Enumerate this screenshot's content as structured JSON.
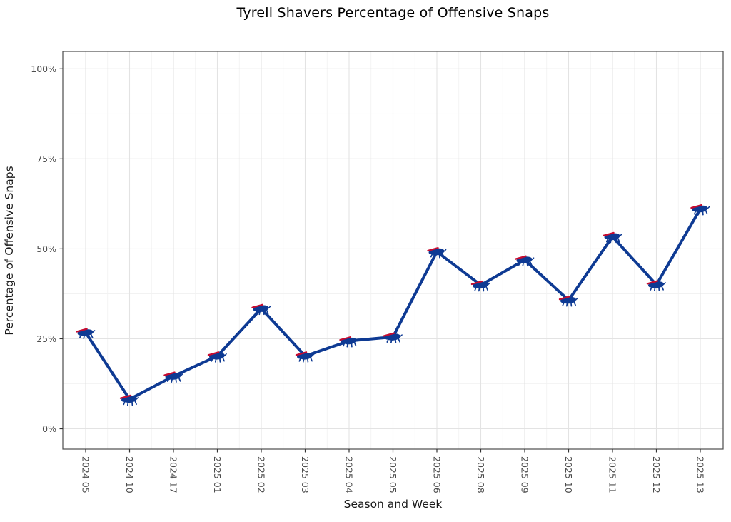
{
  "chart_data": {
    "type": "line",
    "title": "Tyrell Shavers Percentage of Offensive Snaps",
    "xlabel": "Season and Week",
    "ylabel": "Percentage of Offensive Snaps",
    "categories": [
      "2024 05",
      "2024 10",
      "2024 17",
      "2025 01",
      "2025 02",
      "2025 03",
      "2025 04",
      "2025 05",
      "2025 06",
      "2025 08",
      "2025 09",
      "2025 10",
      "2025 11",
      "2025 12",
      "2025 13"
    ],
    "series": [
      {
        "name": "Tyrell Shavers offensive snap percentage",
        "marker": "buffalo-bills-logo",
        "values": [
          26.7,
          8.2,
          14.6,
          20.2,
          33.4,
          20.2,
          24.4,
          25.5,
          49.2,
          39.9,
          46.9,
          35.7,
          53.4,
          40.0,
          61.1
        ]
      }
    ],
    "y_ticks": [
      {
        "label": "0%",
        "value": 0
      },
      {
        "label": "25%",
        "value": 25
      },
      {
        "label": "50%",
        "value": 50
      },
      {
        "label": "75%",
        "value": 75
      },
      {
        "label": "100%",
        "value": 100
      }
    ],
    "ylim": [
      0,
      100
    ],
    "grid": "major and minor, light gray on white",
    "legend": "none",
    "x_tick_rotation_degrees": 90,
    "colors": {
      "line": "#0E3A93",
      "marker_body": "#0E3A93",
      "marker_stripe": "#C60C30",
      "grid_major": "#e3e3e3",
      "grid_minor": "#f1f1f1",
      "panel_border": "#4d4d4d",
      "tick_mark": "#333333",
      "tick_label": "#4d4d4d",
      "axis_title": "#1a1a1a",
      "title": "#000000",
      "background": "#ffffff"
    }
  }
}
